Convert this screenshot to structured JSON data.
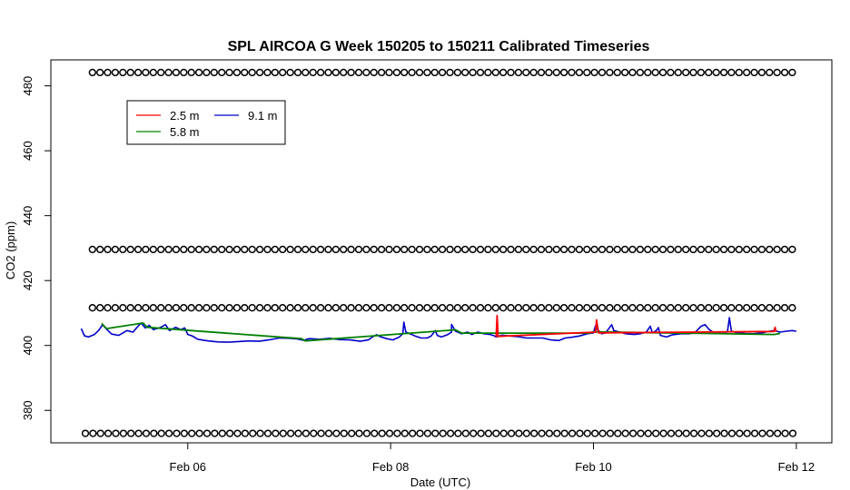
{
  "chart_data": {
    "type": "line",
    "title": "SPL AIRCOA G  Week 150205 to 150211  Calibrated Timeseries",
    "xlabel": "Date (UTC)",
    "ylabel": "CO2 (ppm)",
    "x_start_day": 4.95,
    "x_end_day": 12.0,
    "xlim_days": [
      4.65,
      12.35
    ],
    "ylim": [
      370,
      488
    ],
    "x_ticks": [
      {
        "day": 6,
        "label": "Feb 06"
      },
      {
        "day": 8,
        "label": "Feb 08"
      },
      {
        "day": 10,
        "label": "Feb 10"
      },
      {
        "day": 12,
        "label": "Feb 12"
      }
    ],
    "y_ticks": [
      380,
      400,
      420,
      440,
      460,
      480
    ],
    "grid": false,
    "legend": {
      "position": "top-left",
      "entries": [
        {
          "name": "2.5 m",
          "color": "#ff0000"
        },
        {
          "name": "5.8 m",
          "color": "#008000"
        },
        {
          "name": "9.1 m",
          "color": "#0000cc"
        }
      ]
    },
    "series": [
      {
        "name": "9.1 m",
        "color": "#0000cc",
        "points": [
          [
            4.95,
            405.2
          ],
          [
            4.98,
            403.0
          ],
          [
            5.02,
            402.6
          ],
          [
            5.08,
            403.4
          ],
          [
            5.12,
            404.6
          ],
          [
            5.16,
            406.4
          ],
          [
            5.2,
            405.0
          ],
          [
            5.25,
            403.5
          ],
          [
            5.32,
            403.1
          ],
          [
            5.4,
            404.6
          ],
          [
            5.46,
            404.1
          ],
          [
            5.5,
            405.6
          ],
          [
            5.54,
            406.9
          ],
          [
            5.58,
            405.4
          ],
          [
            5.62,
            406.2
          ],
          [
            5.66,
            404.9
          ],
          [
            5.72,
            405.4
          ],
          [
            5.78,
            406.4
          ],
          [
            5.82,
            404.6
          ],
          [
            5.88,
            405.6
          ],
          [
            5.93,
            404.9
          ],
          [
            5.97,
            405.4
          ],
          [
            6.0,
            403.4
          ],
          [
            6.04,
            403.0
          ],
          [
            6.1,
            401.9
          ],
          [
            6.2,
            401.4
          ],
          [
            6.3,
            401.1
          ],
          [
            6.4,
            401.0
          ],
          [
            6.5,
            401.2
          ],
          [
            6.6,
            401.4
          ],
          [
            6.7,
            401.3
          ],
          [
            6.8,
            401.7
          ],
          [
            6.9,
            402.3
          ],
          [
            7.0,
            402.2
          ],
          [
            7.08,
            402.0
          ],
          [
            7.14,
            401.6
          ],
          [
            7.2,
            402.1
          ],
          [
            7.3,
            401.9
          ],
          [
            7.4,
            402.2
          ],
          [
            7.5,
            401.8
          ],
          [
            7.6,
            401.7
          ],
          [
            7.7,
            401.3
          ],
          [
            7.78,
            401.7
          ],
          [
            7.82,
            402.6
          ],
          [
            7.86,
            403.3
          ],
          [
            7.9,
            402.7
          ],
          [
            7.96,
            402.1
          ],
          [
            8.02,
            401.7
          ],
          [
            8.08,
            402.5
          ],
          [
            8.12,
            403.6
          ],
          [
            8.13,
            407.2
          ],
          [
            8.15,
            404.1
          ],
          [
            8.2,
            403.5
          ],
          [
            8.24,
            402.9
          ],
          [
            8.3,
            402.3
          ],
          [
            8.36,
            402.3
          ],
          [
            8.4,
            402.9
          ],
          [
            8.44,
            404.6
          ],
          [
            8.46,
            403.1
          ],
          [
            8.5,
            402.6
          ],
          [
            8.56,
            403.3
          ],
          [
            8.6,
            404.1
          ],
          [
            8.6,
            406.5
          ],
          [
            8.64,
            404.4
          ],
          [
            8.7,
            403.6
          ],
          [
            8.76,
            404.1
          ],
          [
            8.8,
            403.4
          ],
          [
            8.86,
            404.1
          ],
          [
            8.92,
            403.6
          ],
          [
            8.98,
            403.4
          ],
          [
            9.02,
            403.0
          ],
          [
            9.04,
            402.6
          ],
          [
            9.1,
            403.2
          ],
          [
            9.18,
            402.9
          ],
          [
            9.26,
            402.7
          ],
          [
            9.34,
            402.3
          ],
          [
            9.42,
            402.3
          ],
          [
            9.5,
            402.3
          ],
          [
            9.58,
            401.7
          ],
          [
            9.66,
            401.5
          ],
          [
            9.72,
            402.3
          ],
          [
            9.8,
            402.6
          ],
          [
            9.86,
            402.9
          ],
          [
            9.94,
            403.6
          ],
          [
            10.0,
            403.9
          ],
          [
            10.02,
            406.1
          ],
          [
            10.04,
            404.9
          ],
          [
            10.08,
            403.6
          ],
          [
            10.12,
            403.9
          ],
          [
            10.18,
            406.4
          ],
          [
            10.2,
            404.6
          ],
          [
            10.26,
            404.1
          ],
          [
            10.32,
            403.6
          ],
          [
            10.4,
            403.4
          ],
          [
            10.46,
            403.6
          ],
          [
            10.52,
            404.1
          ],
          [
            10.56,
            405.9
          ],
          [
            10.58,
            403.9
          ],
          [
            10.62,
            404.6
          ],
          [
            10.64,
            405.5
          ],
          [
            10.66,
            403.1
          ],
          [
            10.72,
            402.6
          ],
          [
            10.78,
            403.3
          ],
          [
            10.86,
            403.6
          ],
          [
            10.94,
            403.6
          ],
          [
            11.0,
            403.9
          ],
          [
            11.06,
            405.9
          ],
          [
            11.1,
            406.4
          ],
          [
            11.14,
            404.9
          ],
          [
            11.18,
            404.1
          ],
          [
            11.26,
            404.1
          ],
          [
            11.32,
            404.1
          ],
          [
            11.34,
            408.6
          ],
          [
            11.36,
            404.4
          ],
          [
            11.42,
            403.9
          ],
          [
            11.5,
            403.7
          ],
          [
            11.58,
            403.6
          ],
          [
            11.66,
            403.9
          ],
          [
            11.72,
            404.3
          ],
          [
            11.78,
            404.6
          ],
          [
            11.84,
            404.1
          ],
          [
            11.9,
            404.4
          ],
          [
            11.96,
            404.6
          ],
          [
            12.0,
            404.4
          ]
        ]
      },
      {
        "name": "5.8 m",
        "color": "#008000",
        "points": [
          [
            5.15,
            406.8
          ],
          [
            5.2,
            405.2
          ],
          [
            5.56,
            406.9
          ],
          [
            5.6,
            405.6
          ],
          [
            7.12,
            402.1
          ],
          [
            7.16,
            401.4
          ],
          [
            8.64,
            404.8
          ],
          [
            8.7,
            403.8
          ],
          [
            9.96,
            403.8
          ],
          [
            10.0,
            404.2
          ],
          [
            11.78,
            403.4
          ],
          [
            11.84,
            403.7
          ]
        ]
      },
      {
        "name": "2.5 m",
        "color": "#ff0000",
        "points": [
          [
            9.04,
            402.6
          ],
          [
            9.05,
            409.2
          ],
          [
            9.06,
            402.8
          ],
          [
            10.02,
            404.1
          ],
          [
            10.03,
            407.9
          ],
          [
            10.05,
            403.9
          ],
          [
            11.78,
            404.3
          ],
          [
            11.79,
            405.6
          ],
          [
            11.8,
            404.2
          ]
        ]
      }
    ],
    "markers": [
      {
        "y": 484.1,
        "x_start": 5.06,
        "x_step": 0.075
      },
      {
        "y": 429.6,
        "x_start": 5.06,
        "x_step": 0.075
      },
      {
        "y": 411.6,
        "x_start": 5.06,
        "x_step": 0.075
      },
      {
        "y": 372.9,
        "x_start": 4.99,
        "x_step": 0.075
      }
    ]
  }
}
